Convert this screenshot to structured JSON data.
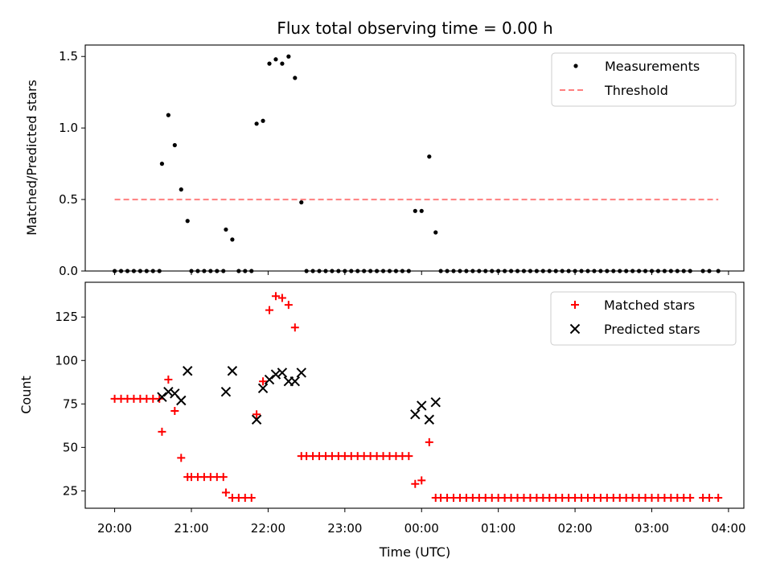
{
  "chart_data": [
    {
      "type": "scatter",
      "title": "Flux total observing time = 0.00 h",
      "xlabel": "",
      "ylabel": "Matched/Predicted stars",
      "ylim": [
        0,
        1.58
      ],
      "yticks": [
        "0.0",
        "0.5",
        "1.0",
        "1.5"
      ],
      "legend_position": "upper right",
      "series": [
        {
          "name": "Measurements",
          "kind": "dot",
          "color": "#000000",
          "points": [
            [
              "20:00",
              0
            ],
            [
              "20:05",
              0
            ],
            [
              "20:10",
              0
            ],
            [
              "20:15",
              0
            ],
            [
              "20:20",
              0
            ],
            [
              "20:25",
              0
            ],
            [
              "20:30",
              0
            ],
            [
              "20:35",
              0
            ],
            [
              "20:37",
              0.75
            ],
            [
              "20:42",
              1.09
            ],
            [
              "20:47",
              0.88
            ],
            [
              "20:52",
              0.57
            ],
            [
              "20:57",
              0.35
            ],
            [
              "21:00",
              0
            ],
            [
              "21:05",
              0
            ],
            [
              "21:10",
              0
            ],
            [
              "21:15",
              0
            ],
            [
              "21:20",
              0
            ],
            [
              "21:25",
              0
            ],
            [
              "21:27",
              0.29
            ],
            [
              "21:32",
              0.22
            ],
            [
              "21:37",
              0
            ],
            [
              "21:42",
              0
            ],
            [
              "21:47",
              0
            ],
            [
              "21:51",
              1.03
            ],
            [
              "21:56",
              1.05
            ],
            [
              "22:01",
              1.45
            ],
            [
              "22:06",
              1.48
            ],
            [
              "22:11",
              1.45
            ],
            [
              "22:16",
              1.5
            ],
            [
              "22:21",
              1.35
            ],
            [
              "22:26",
              0.48
            ],
            [
              "22:30",
              0
            ],
            [
              "22:35",
              0
            ],
            [
              "22:40",
              0
            ],
            [
              "22:45",
              0
            ],
            [
              "22:50",
              0
            ],
            [
              "22:55",
              0
            ],
            [
              "23:00",
              0
            ],
            [
              "23:05",
              0
            ],
            [
              "23:10",
              0
            ],
            [
              "23:15",
              0
            ],
            [
              "23:20",
              0
            ],
            [
              "23:25",
              0
            ],
            [
              "23:30",
              0
            ],
            [
              "23:35",
              0
            ],
            [
              "23:40",
              0
            ],
            [
              "23:45",
              0
            ],
            [
              "23:50",
              0
            ],
            [
              "23:55",
              0.42
            ],
            [
              "24:00",
              0.42
            ],
            [
              "24:06",
              0.8
            ],
            [
              "24:11",
              0.27
            ],
            [
              "24:15",
              0
            ],
            [
              "24:20",
              0
            ],
            [
              "24:25",
              0
            ],
            [
              "24:30",
              0
            ],
            [
              "24:35",
              0
            ],
            [
              "24:40",
              0
            ],
            [
              "24:45",
              0
            ],
            [
              "24:50",
              0
            ],
            [
              "24:55",
              0
            ],
            [
              "25:00",
              0
            ],
            [
              "25:05",
              0
            ],
            [
              "25:10",
              0
            ],
            [
              "25:15",
              0
            ],
            [
              "25:20",
              0
            ],
            [
              "25:25",
              0
            ],
            [
              "25:30",
              0
            ],
            [
              "25:35",
              0
            ],
            [
              "25:40",
              0
            ],
            [
              "25:45",
              0
            ],
            [
              "25:50",
              0
            ],
            [
              "25:55",
              0
            ],
            [
              "26:00",
              0
            ],
            [
              "26:05",
              0
            ],
            [
              "26:10",
              0
            ],
            [
              "26:15",
              0
            ],
            [
              "26:20",
              0
            ],
            [
              "26:25",
              0
            ],
            [
              "26:30",
              0
            ],
            [
              "26:35",
              0
            ],
            [
              "26:40",
              0
            ],
            [
              "26:45",
              0
            ],
            [
              "26:50",
              0
            ],
            [
              "26:55",
              0
            ],
            [
              "27:00",
              0
            ],
            [
              "27:05",
              0
            ],
            [
              "27:10",
              0
            ],
            [
              "27:15",
              0
            ],
            [
              "27:20",
              0
            ],
            [
              "27:25",
              0
            ],
            [
              "27:30",
              0
            ],
            [
              "27:40",
              0
            ],
            [
              "27:45",
              0
            ],
            [
              "27:52",
              0
            ]
          ]
        },
        {
          "name": "Threshold",
          "kind": "dashed-line",
          "color": "#ff7f7f",
          "points": [
            [
              "20:00",
              0.5
            ],
            [
              "27:52",
              0.5
            ]
          ]
        }
      ]
    },
    {
      "type": "scatter",
      "title": "",
      "xlabel": "Time (UTC)",
      "ylabel": "Count",
      "ylim": [
        15,
        145
      ],
      "yticks": [
        "25",
        "50",
        "75",
        "100",
        "125"
      ],
      "xlim": [
        "19:37",
        "28:12"
      ],
      "xticks": [
        "20:00",
        "21:00",
        "22:00",
        "23:00",
        "00:00",
        "01:00",
        "02:00",
        "03:00",
        "04:00"
      ],
      "legend_position": "upper right",
      "series": [
        {
          "name": "Matched stars",
          "kind": "plus",
          "color": "#ff0000",
          "points": [
            [
              "20:00",
              78
            ],
            [
              "20:05",
              78
            ],
            [
              "20:10",
              78
            ],
            [
              "20:15",
              78
            ],
            [
              "20:20",
              78
            ],
            [
              "20:25",
              78
            ],
            [
              "20:30",
              78
            ],
            [
              "20:35",
              78
            ],
            [
              "20:37",
              59
            ],
            [
              "20:42",
              89
            ],
            [
              "20:47",
              71
            ],
            [
              "20:52",
              44
            ],
            [
              "20:57",
              33
            ],
            [
              "21:00",
              33
            ],
            [
              "21:05",
              33
            ],
            [
              "21:10",
              33
            ],
            [
              "21:15",
              33
            ],
            [
              "21:20",
              33
            ],
            [
              "21:25",
              33
            ],
            [
              "21:27",
              24
            ],
            [
              "21:32",
              21
            ],
            [
              "21:37",
              21
            ],
            [
              "21:42",
              21
            ],
            [
              "21:47",
              21
            ],
            [
              "21:51",
              69
            ],
            [
              "21:56",
              88
            ],
            [
              "22:01",
              129
            ],
            [
              "22:06",
              137
            ],
            [
              "22:11",
              136
            ],
            [
              "22:16",
              132
            ],
            [
              "22:21",
              119
            ],
            [
              "22:26",
              45
            ],
            [
              "22:30",
              45
            ],
            [
              "22:35",
              45
            ],
            [
              "22:40",
              45
            ],
            [
              "22:45",
              45
            ],
            [
              "22:50",
              45
            ],
            [
              "22:55",
              45
            ],
            [
              "23:00",
              45
            ],
            [
              "23:05",
              45
            ],
            [
              "23:10",
              45
            ],
            [
              "23:15",
              45
            ],
            [
              "23:20",
              45
            ],
            [
              "23:25",
              45
            ],
            [
              "23:30",
              45
            ],
            [
              "23:35",
              45
            ],
            [
              "23:40",
              45
            ],
            [
              "23:45",
              45
            ],
            [
              "23:50",
              45
            ],
            [
              "23:55",
              29
            ],
            [
              "24:00",
              31
            ],
            [
              "24:06",
              53
            ],
            [
              "24:11",
              21
            ],
            [
              "24:15",
              21
            ],
            [
              "24:20",
              21
            ],
            [
              "24:25",
              21
            ],
            [
              "24:30",
              21
            ],
            [
              "24:35",
              21
            ],
            [
              "24:40",
              21
            ],
            [
              "24:45",
              21
            ],
            [
              "24:50",
              21
            ],
            [
              "24:55",
              21
            ],
            [
              "25:00",
              21
            ],
            [
              "25:05",
              21
            ],
            [
              "25:10",
              21
            ],
            [
              "25:15",
              21
            ],
            [
              "25:20",
              21
            ],
            [
              "25:25",
              21
            ],
            [
              "25:30",
              21
            ],
            [
              "25:35",
              21
            ],
            [
              "25:40",
              21
            ],
            [
              "25:45",
              21
            ],
            [
              "25:50",
              21
            ],
            [
              "25:55",
              21
            ],
            [
              "26:00",
              21
            ],
            [
              "26:05",
              21
            ],
            [
              "26:10",
              21
            ],
            [
              "26:15",
              21
            ],
            [
              "26:20",
              21
            ],
            [
              "26:25",
              21
            ],
            [
              "26:30",
              21
            ],
            [
              "26:35",
              21
            ],
            [
              "26:40",
              21
            ],
            [
              "26:45",
              21
            ],
            [
              "26:50",
              21
            ],
            [
              "26:55",
              21
            ],
            [
              "27:00",
              21
            ],
            [
              "27:05",
              21
            ],
            [
              "27:10",
              21
            ],
            [
              "27:15",
              21
            ],
            [
              "27:20",
              21
            ],
            [
              "27:25",
              21
            ],
            [
              "27:30",
              21
            ],
            [
              "27:40",
              21
            ],
            [
              "27:45",
              21
            ],
            [
              "27:52",
              21
            ]
          ]
        },
        {
          "name": "Predicted stars",
          "kind": "x",
          "color": "#000000",
          "points": [
            [
              "20:37",
              79
            ],
            [
              "20:42",
              82
            ],
            [
              "20:47",
              81
            ],
            [
              "20:52",
              77
            ],
            [
              "20:57",
              94
            ],
            [
              "21:27",
              82
            ],
            [
              "21:32",
              94
            ],
            [
              "21:51",
              66
            ],
            [
              "21:56",
              84
            ],
            [
              "22:01",
              89
            ],
            [
              "22:06",
              92
            ],
            [
              "22:11",
              93
            ],
            [
              "22:16",
              88
            ],
            [
              "22:21",
              88
            ],
            [
              "22:26",
              93
            ],
            [
              "23:55",
              69
            ],
            [
              "24:00",
              74
            ],
            [
              "24:06",
              66
            ],
            [
              "24:11",
              76
            ]
          ]
        }
      ]
    }
  ]
}
